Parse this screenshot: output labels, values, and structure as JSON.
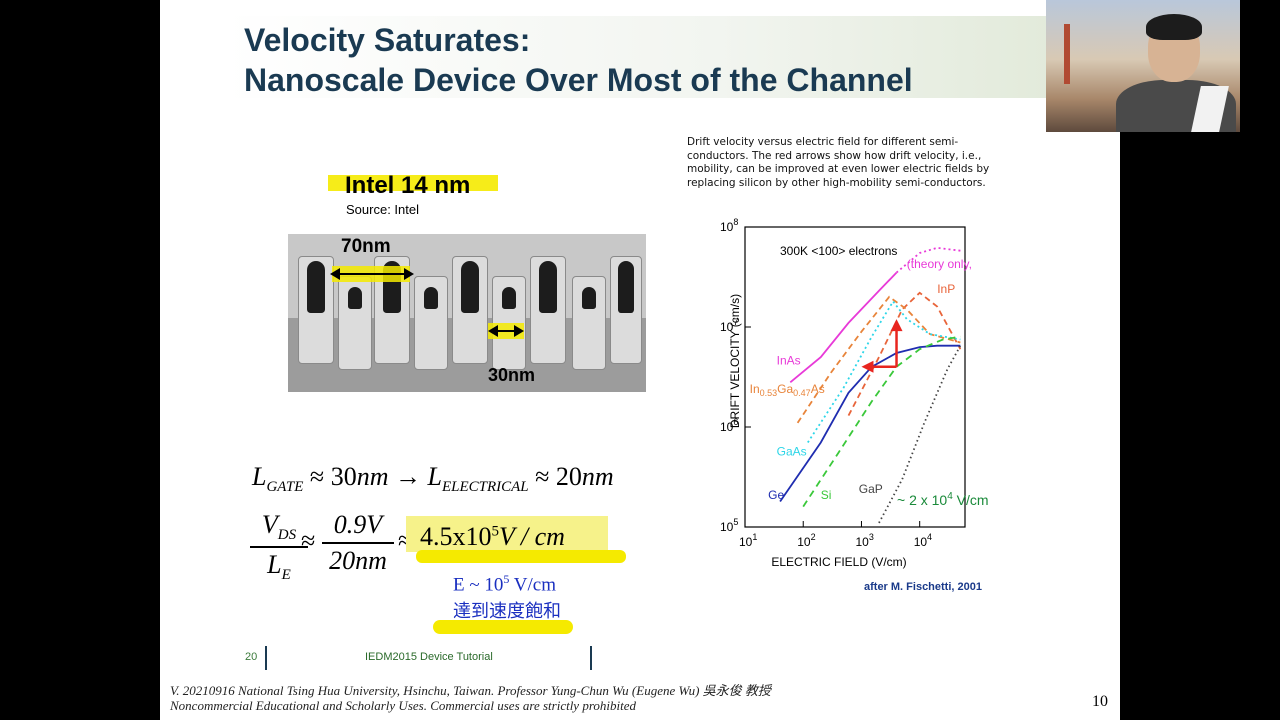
{
  "slide": {
    "title_line1": "Velocity Saturates:",
    "title_line2": "Nanoscale Device Over Most of the Channel",
    "intel_title": "Intel 14 nm",
    "intel_source": "Source: Intel",
    "label_70nm": "70nm",
    "label_30nm": "30nm",
    "eq1": {
      "lgate_L": "L",
      "lgate_sub": "GATE",
      "approx1": "≈ 30",
      "nm1": "nm",
      "arrow": " → ",
      "lel_L": "L",
      "lel_sub": "ELECTRICAL",
      "approx2": "≈ 20",
      "nm2": "nm"
    },
    "eq2": {
      "num_V": "V",
      "num_sub": "DS",
      "den_L": "L",
      "den_sub": "E",
      "approx": "≈",
      "num2": "0.9V",
      "den2": "20nm",
      "approx2": "≈",
      "result_base": "4.5x10",
      "result_exp": "5",
      "result_unit": "V / cm"
    },
    "note_line1": "E ~ 10",
    "note_line1_exp": "5",
    "note_line1_unit": " V/cm",
    "note_line2": "達到速度飽和",
    "caption": "Drift velocity versus electric field for different semi-conductors. The red arrows show how drift velocity, i.e., mobility, can be improved at even lower electric fields by replacing silicon by other high-mobility semi-conductors.",
    "attribution": "after M. Fischetti, 2001",
    "footer_page": "20",
    "footer_title": "IEDM2015  Device Tutorial",
    "credit_line1": "V. 20210916 National Tsing Hua University, Hsinchu, Taiwan. Professor Yung-Chun Wu (Eugene Wu) 吳永俊 教授",
    "credit_line2": "Noncommercial Educational and Scholarly Uses. Commercial uses are strictly prohibited",
    "page_number": "10"
  },
  "chart_data": {
    "type": "line",
    "x_scale": "log",
    "y_scale": "log",
    "xlim": [
      10,
      60000
    ],
    "ylim": [
      100000,
      100000000
    ],
    "xlabel": "ELECTRIC FIELD (V/cm)",
    "ylabel": "DRIFT VELOCITY (cm/s)",
    "x_ticks": [
      {
        "base": "10",
        "exp": "1",
        "value": 10
      },
      {
        "base": "10",
        "exp": "2",
        "value": 100
      },
      {
        "base": "10",
        "exp": "3",
        "value": 1000
      },
      {
        "base": "10",
        "exp": "4",
        "value": 10000
      }
    ],
    "y_ticks": [
      {
        "base": "10",
        "exp": "5",
        "value": 100000
      },
      {
        "base": "10",
        "exp": "6",
        "value": 1000000
      },
      {
        "base": "10",
        "exp": "7",
        "value": 10000000
      },
      {
        "base": "10",
        "exp": "8",
        "value": 100000000
      }
    ],
    "inner_label": "300K <100> electrons",
    "threshold_label": "~ 2 x 10",
    "threshold_exp": "4",
    "threshold_unit": " V/cm",
    "series": [
      {
        "name": "InAs",
        "color": "#e83ad8",
        "dash": "solid",
        "x": [
          60,
          200,
          600,
          2000,
          4000
        ],
        "y": [
          2800000,
          5000000,
          11000000,
          23000000,
          35000000
        ],
        "label_x": 35,
        "label_y": 4200000
      },
      {
        "name": "theory only",
        "label": "(theory only,",
        "color": "#e83ad8",
        "dash": "2,3",
        "x": [
          4000,
          10000,
          20000,
          50000
        ],
        "y": [
          35000000,
          55000000,
          62000000,
          58000000
        ],
        "label_x": 6000,
        "label_y": 39000000
      },
      {
        "name": "InP",
        "color": "#e8643a",
        "dash": "6,4",
        "x": [
          600,
          2000,
          5000,
          10000,
          20000,
          50000
        ],
        "y": [
          1300000,
          5000000,
          15000000,
          22000000,
          16000000,
          6000000
        ],
        "label_x": 20000,
        "label_y": 22000000
      },
      {
        "name": "In0.53Ga0.47As",
        "color": "#e8843a",
        "dash": "6,4",
        "x": [
          80,
          300,
          1000,
          3000,
          6000,
          15000,
          50000
        ],
        "y": [
          1100000,
          3500000,
          9000000,
          20000000,
          15000000,
          8500000,
          7000000
        ],
        "label_x": 12,
        "label_y": 2200000
      },
      {
        "name": "GaAs",
        "color": "#2dd6e8",
        "dash": "2,3",
        "x": [
          120,
          500,
          1500,
          3500,
          6000,
          15000,
          50000
        ],
        "y": [
          700000,
          2500000,
          8000000,
          18000000,
          12000000,
          8500000,
          7500000
        ],
        "label_x": 35,
        "label_y": 520000
      },
      {
        "name": "Ge",
        "color": "#1f2db0",
        "dash": "solid",
        "x": [
          40,
          200,
          600,
          1500,
          4000,
          10000,
          20000,
          50000
        ],
        "y": [
          180000,
          700000,
          2200000,
          4000000,
          5500000,
          6300000,
          6500000,
          6500000
        ],
        "label_x": 25,
        "label_y": 190000
      },
      {
        "name": "Si",
        "color": "#3ac83a",
        "dash": "7,5",
        "x": [
          100,
          400,
          1500,
          4000,
          10000,
          25000,
          50000
        ],
        "y": [
          160000,
          550000,
          1800000,
          4000000,
          6000000,
          7500000,
          8000000
        ],
        "label_x": 200,
        "label_y": 190000
      },
      {
        "name": "GaP",
        "color": "#444444",
        "dash": "1.5,3",
        "x": [
          2000,
          5000,
          12000,
          30000,
          50000
        ],
        "y": [
          110000,
          300000,
          1100000,
          3800000,
          6500000
        ],
        "label_x": 900,
        "label_y": 220000
      }
    ],
    "red_arrow": {
      "color": "#e8251f",
      "base_x": 4000,
      "base_y": 4000000,
      "up_to_y": 12000000,
      "left_to_x": 1000
    }
  }
}
